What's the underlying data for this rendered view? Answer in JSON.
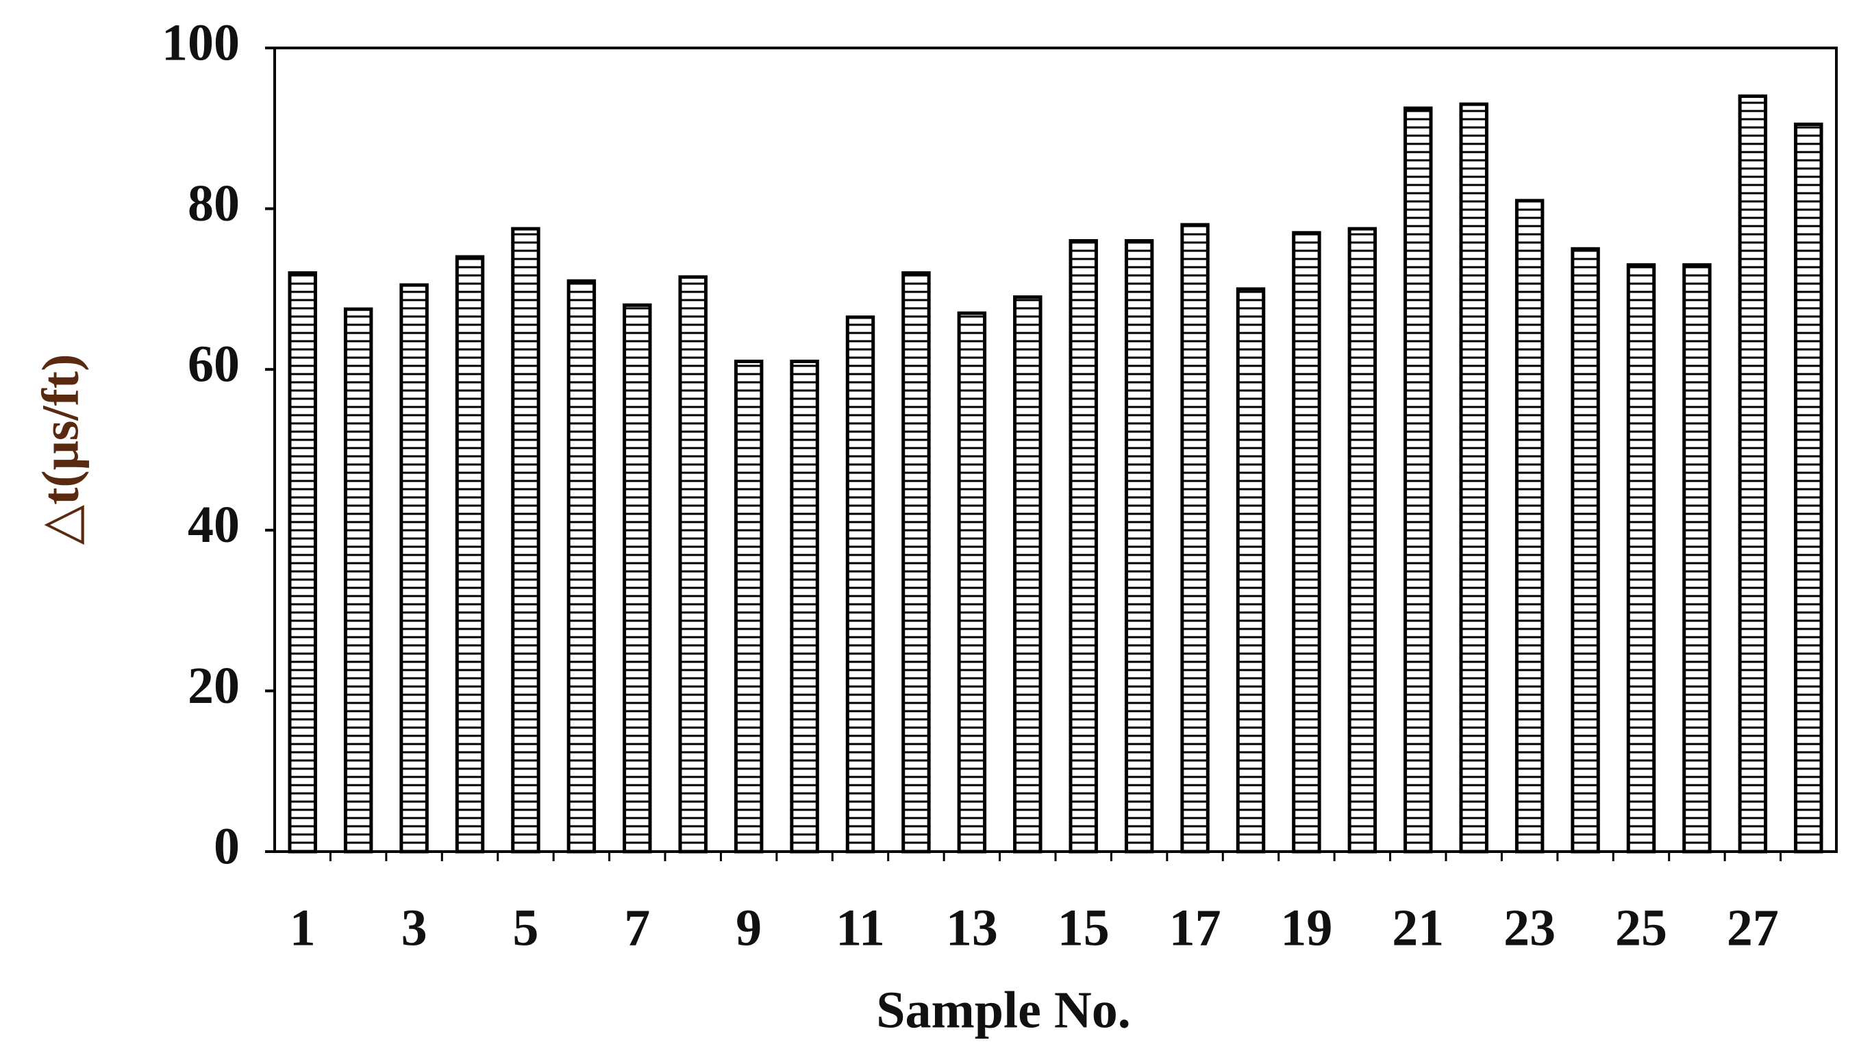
{
  "chart_data": {
    "type": "bar",
    "x_label": "Sample No.",
    "y_label": "△t(μs/ft)",
    "categories": [
      "1",
      null,
      "3",
      null,
      "5",
      null,
      "7",
      null,
      "9",
      null,
      "11",
      null,
      "13",
      null,
      "15",
      null,
      "17",
      null,
      "19",
      null,
      "21",
      null,
      "23",
      null,
      "25",
      null,
      "27",
      null
    ],
    "values": [
      72,
      67.5,
      70.5,
      74,
      77.5,
      71,
      68,
      71.5,
      61,
      61,
      66.5,
      72,
      67,
      69,
      76,
      76,
      78,
      70,
      77,
      77.5,
      92.5,
      93,
      81,
      75,
      73,
      73,
      94,
      90.5
    ],
    "color": "#000000",
    "ylim": [
      0,
      100
    ],
    "yticks": [
      0,
      20,
      40,
      60,
      80,
      100
    ],
    "grid": false
  }
}
